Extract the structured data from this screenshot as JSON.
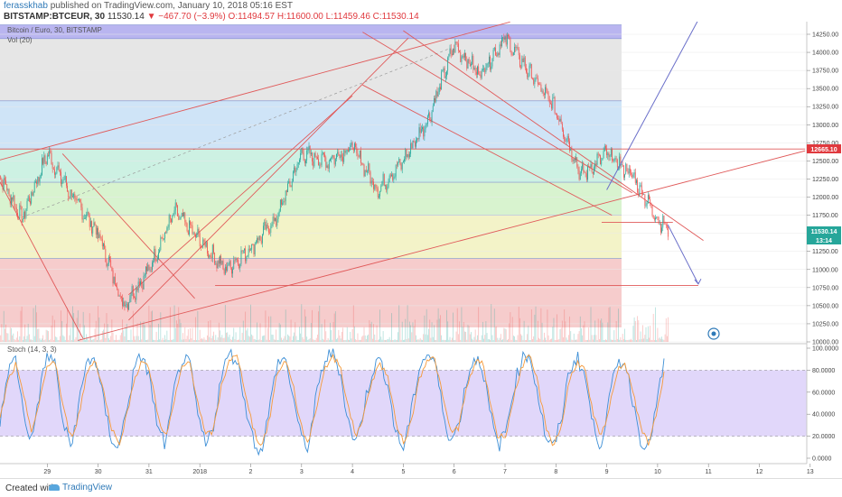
{
  "header": {
    "author": "ferasskhab",
    "published": "published on TradingView.com, January 10, 2018 05:16 EST",
    "symbol": "BITSTAMP:BTCEUR, 30",
    "last": "11530.14",
    "change": "▼ −467.70 (−3.9%)",
    "ohlc": "O:11494.57 H:11600.00 L:11459.46 C:11530.14"
  },
  "pane_labels": {
    "main": "Bitcoin / Euro, 30, BITSTAMP",
    "volume": "Vol (20)",
    "stoch": "Stoch (14, 3, 3)"
  },
  "price_tags": {
    "resistance": "12665.10",
    "last": "11530.14",
    "countdown": "13:14"
  },
  "footer": {
    "created_with": "Created with",
    "brand": "TradingView"
  },
  "colors": {
    "up": "#26a69a",
    "down": "#ef5350",
    "stoch_k": "#3d8fd6",
    "stoch_d": "#f59a3a",
    "stoch_band": "#c9b6f5",
    "trendline": "#e05a5a",
    "projection": "#6a6fc9"
  },
  "chart_data": [
    {
      "type": "candlestick",
      "title": "Bitcoin / Euro, 30, BITSTAMP",
      "x_tick_labels": [
        "29",
        "30",
        "31",
        "2018",
        "2",
        "3",
        "4",
        "5",
        "6",
        "7",
        "8",
        "9",
        "10",
        "11",
        "12",
        "13"
      ],
      "y_tick_labels": [
        "10000.00",
        "10250.00",
        "10500.00",
        "10750.00",
        "11000.00",
        "11250.00",
        "11500.00",
        "11750.00",
        "12000.00",
        "12250.00",
        "12500.00",
        "12750.00",
        "13000.00",
        "13250.00",
        "13500.00",
        "13750.00",
        "14000.00",
        "14250.00"
      ],
      "ylim": [
        9990,
        14400
      ],
      "xlim": [
        28.1,
        13.9
      ],
      "approx_close_path": [
        {
          "x": "Dec 28 00:00",
          "close": 12400
        },
        {
          "x": "Dec 28 12:00",
          "close": 11700
        },
        {
          "x": "Dec 29 00:00",
          "close": 12600
        },
        {
          "x": "Dec 29 12:00",
          "close": 12000
        },
        {
          "x": "Dec 30 00:00",
          "close": 11500
        },
        {
          "x": "Dec 30 12:00",
          "close": 10500
        },
        {
          "x": "Dec 31 00:00",
          "close": 11000
        },
        {
          "x": "Dec 31 12:00",
          "close": 11800
        },
        {
          "x": "Jan 1 00:00",
          "close": 11400
        },
        {
          "x": "Jan 1 12:00",
          "close": 11000
        },
        {
          "x": "Jan 2 00:00",
          "close": 11300
        },
        {
          "x": "Jan 2 12:00",
          "close": 11700
        },
        {
          "x": "Jan 3 00:00",
          "close": 12600
        },
        {
          "x": "Jan 3 12:00",
          "close": 12500
        },
        {
          "x": "Jan 4 00:00",
          "close": 12700
        },
        {
          "x": "Jan 4 12:00",
          "close": 12100
        },
        {
          "x": "Jan 5 00:00",
          "close": 12500
        },
        {
          "x": "Jan 5 12:00",
          "close": 13100
        },
        {
          "x": "Jan 6 00:00",
          "close": 14100
        },
        {
          "x": "Jan 6 12:00",
          "close": 13700
        },
        {
          "x": "Jan 7 00:00",
          "close": 14200
        },
        {
          "x": "Jan 7 12:00",
          "close": 13700
        },
        {
          "x": "Jan 8 00:00",
          "close": 13200
        },
        {
          "x": "Jan 8 12:00",
          "close": 12300
        },
        {
          "x": "Jan 9 00:00",
          "close": 12600
        },
        {
          "x": "Jan 9 12:00",
          "close": 12300
        },
        {
          "x": "Jan 10 00:00",
          "close": 11700
        },
        {
          "x": "Jan 10 06:00",
          "close": 11530.14
        }
      ],
      "horizontal_levels": [
        12665.1,
        11650,
        10780
      ],
      "zone_bands": [
        {
          "from": 14190,
          "to": 14380,
          "color": "#b9b5f0"
        },
        {
          "from": 13330,
          "to": 14190,
          "color": "#e6e6e6"
        },
        {
          "from": 12665,
          "to": 13330,
          "color": "#cfe4f7"
        },
        {
          "from": 12205,
          "to": 12665,
          "color": "#cdf1e3"
        },
        {
          "from": 11750,
          "to": 12205,
          "color": "#d8f3cf"
        },
        {
          "from": 11150,
          "to": 11750,
          "color": "#f3f3c8"
        },
        {
          "from": 10200,
          "to": 11150,
          "color": "#f6cccc"
        }
      ]
    },
    {
      "type": "bar",
      "title": "Vol (20)",
      "note": "volume histogram at bottom of price pane"
    },
    {
      "type": "line",
      "title": "Stoch (14, 3, 3)",
      "y_tick_labels": [
        "0.0000",
        "20.0000",
        "40.0000",
        "60.0000",
        "80.0000",
        "100.0000"
      ],
      "ylim": [
        0,
        100
      ],
      "band": [
        20,
        80
      ],
      "series": [
        {
          "name": "%K",
          "values": [
            30,
            80,
            90,
            40,
            15,
            60,
            95,
            85,
            30,
            10,
            50,
            88,
            92,
            55,
            20,
            8,
            45,
            80,
            95,
            70,
            25,
            12,
            60,
            90,
            85,
            40,
            10,
            30,
            75,
            95,
            90,
            50,
            18,
            5,
            40,
            85,
            92,
            60,
            20,
            10,
            55,
            88,
            96,
            80,
            35,
            12,
            45,
            78,
            90,
            70,
            25,
            8,
            40,
            82,
            95,
            88,
            45,
            15,
            30,
            70,
            92,
            85,
            40,
            10,
            25,
            65,
            90,
            95,
            60,
            20,
            8,
            35,
            80,
            92,
            75,
            30,
            12,
            50,
            85,
            90,
            55,
            18,
            10,
            45,
            88
          ]
        },
        {
          "name": "%D",
          "values": [
            35,
            70,
            85,
            55,
            25,
            50,
            85,
            88,
            45,
            18,
            40,
            78,
            90,
            65,
            30,
            12,
            38,
            72,
            90,
            78,
            38,
            18,
            50,
            82,
            88,
            52,
            20,
            25,
            65,
            90,
            92,
            62,
            28,
            10,
            32,
            75,
            90,
            70,
            30,
            14,
            45,
            80,
            92,
            86,
            48,
            20,
            38,
            70,
            86,
            76,
            35,
            14,
            32,
            72,
            90,
            90,
            56,
            24,
            28,
            62,
            86,
            88,
            52,
            18,
            22,
            55,
            84,
            92,
            70,
            30,
            12,
            28,
            70,
            88,
            80,
            40,
            18,
            42,
            78,
            88,
            64,
            28,
            14,
            38,
            78
          ]
        }
      ]
    }
  ]
}
